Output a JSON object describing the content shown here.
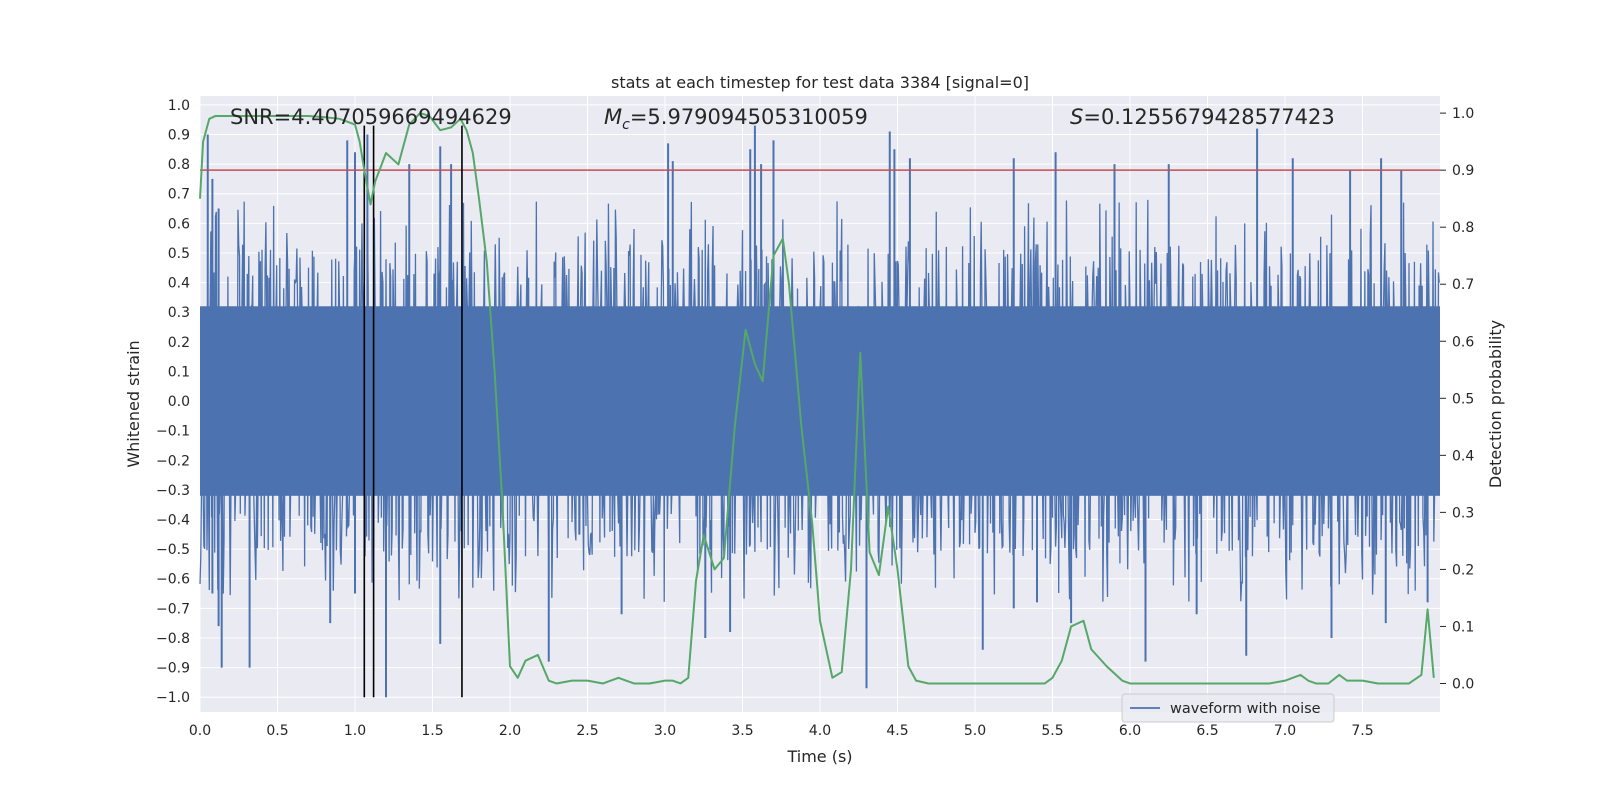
{
  "chart_data": {
    "type": "line",
    "title": "stats at each timestep for test data 3384 [signal=0]",
    "xlabel": "Time (s)",
    "ylabel_left": "Whitened strain",
    "ylabel_right": "Detection probability",
    "xlim": [
      0,
      8
    ],
    "ylim_left": [
      -1.05,
      1.03
    ],
    "ylim_right": [
      -0.05,
      1.03
    ],
    "x_ticks": [
      0.0,
      0.5,
      1.0,
      1.5,
      2.0,
      2.5,
      3.0,
      3.5,
      4.0,
      4.5,
      5.0,
      5.5,
      6.0,
      6.5,
      7.0,
      7.5
    ],
    "x_tick_labels": [
      "0.0",
      "0.5",
      "1.0",
      "1.5",
      "2.0",
      "2.5",
      "3.0",
      "3.5",
      "4.0",
      "4.5",
      "5.0",
      "5.5",
      "6.0",
      "6.5",
      "7.0",
      "7.5"
    ],
    "y_left_ticks": [
      1.0,
      0.9,
      0.8,
      0.7,
      0.6,
      0.5,
      0.4,
      0.3,
      0.2,
      0.1,
      0.0,
      -0.1,
      -0.2,
      -0.3,
      -0.4,
      -0.5,
      -0.6,
      -0.7,
      -0.8,
      -0.9,
      -1.0
    ],
    "y_left_tick_labels": [
      "1.0",
      "0.9",
      "0.8",
      "0.7",
      "0.6",
      "0.5",
      "0.4",
      "0.3",
      "0.2",
      "0.1",
      "0.0",
      "−0.1",
      "−0.2",
      "−0.3",
      "−0.4",
      "−0.5",
      "−0.6",
      "−0.7",
      "−0.8",
      "−0.9",
      "−1.0"
    ],
    "y_right_ticks": [
      1.0,
      0.9,
      0.8,
      0.7,
      0.6,
      0.5,
      0.4,
      0.3,
      0.2,
      0.1,
      0.0
    ],
    "y_right_tick_labels": [
      "1.0",
      "0.9",
      "0.8",
      "0.7",
      "0.6",
      "0.5",
      "0.4",
      "0.3",
      "0.2",
      "0.1",
      "0.0"
    ],
    "annotations": {
      "snr": "SNR=4.407059669494629",
      "mc_symbol": "M",
      "mc_sub": "c",
      "mc_value": "=5.979094505310059",
      "s_symbol": "S",
      "s_value": "=0.1255679428577423"
    },
    "waveform": {
      "name": "waveform with noise",
      "color": "#4c72b0",
      "n_samples": 1600,
      "core_amplitude": 0.32,
      "spikes": [
        [
          0.05,
          0.9
        ],
        [
          0.08,
          0.75
        ],
        [
          0.12,
          0.65
        ],
        [
          0.95,
          0.88
        ],
        [
          1.0,
          0.84
        ],
        [
          1.08,
          0.9
        ],
        [
          1.35,
          0.8
        ],
        [
          1.55,
          0.86
        ],
        [
          1.62,
          0.8
        ],
        [
          3.02,
          0.87
        ],
        [
          3.05,
          0.81
        ],
        [
          3.55,
          0.85
        ],
        [
          3.58,
          0.93
        ],
        [
          3.62,
          0.8
        ],
        [
          3.7,
          0.88
        ],
        [
          4.45,
          0.91
        ],
        [
          4.48,
          0.85
        ],
        [
          4.58,
          0.82
        ],
        [
          5.25,
          0.82
        ],
        [
          5.52,
          0.84
        ],
        [
          5.9,
          0.8
        ],
        [
          6.25,
          0.8
        ],
        [
          6.82,
          0.92
        ],
        [
          7.05,
          0.82
        ],
        [
          7.42,
          0.78
        ],
        [
          7.62,
          0.82
        ],
        [
          7.75,
          0.78
        ],
        [
          0.08,
          -0.65
        ],
        [
          0.12,
          -0.76
        ],
        [
          0.14,
          -0.9
        ],
        [
          0.32,
          -0.9
        ],
        [
          0.84,
          -0.75
        ],
        [
          1.0,
          -0.65
        ],
        [
          1.2,
          -1.0
        ],
        [
          1.55,
          -0.82
        ],
        [
          2.25,
          -0.88
        ],
        [
          2.72,
          -0.72
        ],
        [
          3.26,
          -0.8
        ],
        [
          3.42,
          -0.78
        ],
        [
          4.3,
          -0.97
        ],
        [
          5.05,
          -0.84
        ],
        [
          5.25,
          -0.7
        ],
        [
          5.4,
          -0.68
        ],
        [
          5.62,
          -0.75
        ],
        [
          6.1,
          -0.88
        ],
        [
          6.43,
          -0.72
        ],
        [
          6.75,
          -0.86
        ],
        [
          7.3,
          -0.8
        ],
        [
          7.65,
          -0.75
        ],
        [
          7.92,
          -0.68
        ]
      ]
    },
    "detection_probability": {
      "color": "#55a868",
      "x": [
        0.0,
        0.02,
        0.06,
        0.1,
        0.15,
        0.2,
        0.3,
        0.4,
        0.5,
        0.6,
        0.7,
        0.8,
        0.9,
        1.0,
        1.03,
        1.06,
        1.1,
        1.13,
        1.2,
        1.28,
        1.35,
        1.42,
        1.48,
        1.55,
        1.62,
        1.68,
        1.72,
        1.76,
        1.8,
        1.85,
        1.9,
        1.95,
        2.0,
        2.05,
        2.1,
        2.18,
        2.25,
        2.3,
        2.4,
        2.5,
        2.6,
        2.7,
        2.75,
        2.8,
        2.9,
        3.0,
        3.05,
        3.1,
        3.15,
        3.2,
        3.25,
        3.32,
        3.38,
        3.45,
        3.52,
        3.58,
        3.63,
        3.7,
        3.76,
        3.8,
        3.88,
        3.95,
        4.0,
        4.08,
        4.14,
        4.2,
        4.26,
        4.32,
        4.38,
        4.44,
        4.5,
        4.57,
        4.62,
        4.7,
        4.8,
        4.95,
        5.1,
        5.3,
        5.45,
        5.5,
        5.56,
        5.62,
        5.7,
        5.75,
        5.85,
        5.95,
        6.0,
        6.1,
        6.3,
        6.5,
        6.7,
        6.9,
        7.0,
        7.1,
        7.15,
        7.2,
        7.28,
        7.35,
        7.4,
        7.5,
        7.6,
        7.7,
        7.8,
        7.88,
        7.92,
        7.96
      ],
      "y": [
        0.85,
        0.95,
        0.99,
        0.995,
        0.995,
        0.995,
        0.995,
        0.995,
        0.995,
        0.995,
        0.995,
        0.993,
        0.99,
        0.98,
        0.95,
        0.9,
        0.84,
        0.88,
        0.93,
        0.91,
        0.98,
        1.0,
        0.995,
        0.97,
        0.975,
        0.99,
        0.97,
        0.93,
        0.85,
        0.74,
        0.55,
        0.32,
        0.03,
        0.01,
        0.04,
        0.05,
        0.005,
        0.0,
        0.005,
        0.005,
        0.0,
        0.01,
        0.005,
        0.0,
        0.0,
        0.005,
        0.005,
        0.0,
        0.01,
        0.18,
        0.26,
        0.2,
        0.22,
        0.45,
        0.62,
        0.56,
        0.53,
        0.75,
        0.78,
        0.7,
        0.45,
        0.28,
        0.11,
        0.01,
        0.02,
        0.2,
        0.58,
        0.23,
        0.19,
        0.31,
        0.2,
        0.03,
        0.005,
        0.0,
        0.0,
        0.0,
        0.0,
        0.0,
        0.0,
        0.01,
        0.04,
        0.1,
        0.11,
        0.06,
        0.03,
        0.005,
        0.0,
        0.0,
        0.0,
        0.0,
        0.0,
        0.0,
        0.005,
        0.015,
        0.005,
        0.0,
        0.0,
        0.015,
        0.005,
        0.005,
        0.0,
        0.0,
        0.0,
        0.015,
        0.13,
        0.01
      ]
    },
    "threshold": {
      "value": 0.9,
      "axis": "right",
      "color": "#c44e52"
    },
    "vertical_markers": {
      "x": [
        1.06,
        1.12,
        1.69
      ],
      "y_range": [
        -1.0,
        0.93
      ],
      "color": "#000000"
    },
    "legend": {
      "location": "lower-right",
      "entries": [
        "waveform with noise"
      ]
    },
    "grid": true,
    "background": "#eaeaf2"
  }
}
